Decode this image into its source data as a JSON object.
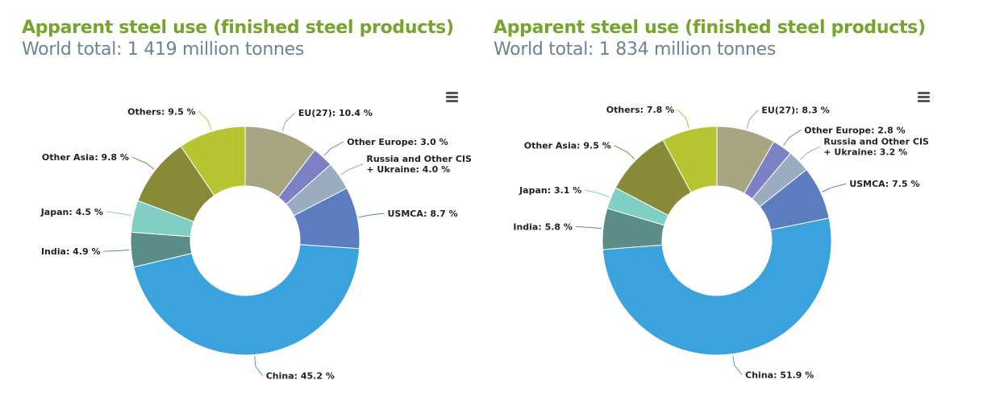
{
  "chart_data": [
    {
      "type": "pie",
      "title": "Apparent steel use (finished steel products)",
      "subtitle": "World total: 1 419 million tonnes",
      "slices": [
        {
          "name": "EU(27)",
          "value": 10.4,
          "label": "EU(27): 10.4 %",
          "color": "#a8a582"
        },
        {
          "name": "Other Europe",
          "value": 3.0,
          "label": "Other Europe: 3.0 %",
          "color": "#7b81c4"
        },
        {
          "name": "Russia and Other CIS + Ukraine",
          "value": 4.0,
          "label": [
            "Russia and Other CIS",
            "+ Ukraine: 4.0 %"
          ],
          "color": "#9aacc0"
        },
        {
          "name": "USMCA",
          "value": 8.7,
          "label": "USMCA: 8.7 %",
          "color": "#5b7dc0"
        },
        {
          "name": "China",
          "value": 45.2,
          "label": "China: 45.2 %",
          "color": "#3aa2dc"
        },
        {
          "name": "India",
          "value": 4.9,
          "label": "India: 4.9 %",
          "color": "#5a8d85"
        },
        {
          "name": "Japan",
          "value": 4.5,
          "label": "Japan: 4.5 %",
          "color": "#7fcfc4"
        },
        {
          "name": "Other Asia",
          "value": 9.8,
          "label": "Other Asia: 9.8 %",
          "color": "#878a36"
        },
        {
          "name": "Others",
          "value": 9.5,
          "label": "Others: 9.5 %",
          "color": "#b6c530"
        }
      ]
    },
    {
      "type": "pie",
      "title": "Apparent steel use (finished steel products)",
      "subtitle": "World total: 1 834 million tonnes",
      "slices": [
        {
          "name": "EU(27)",
          "value": 8.3,
          "label": "EU(27): 8.3 %",
          "color": "#a8a582"
        },
        {
          "name": "Other Europe",
          "value": 2.8,
          "label": "Other Europe: 2.8 %",
          "color": "#7b81c4"
        },
        {
          "name": "Russia and Other CIS + Ukraine",
          "value": 3.2,
          "label": [
            "Russia and Other CIS",
            "+ Ukraine: 3.2 %"
          ],
          "color": "#9aacc0"
        },
        {
          "name": "USMCA",
          "value": 7.5,
          "label": "USMCA: 7.5 %",
          "color": "#5b7dc0"
        },
        {
          "name": "China",
          "value": 51.9,
          "label": "China: 51.9 %",
          "color": "#3aa2dc"
        },
        {
          "name": "India",
          "value": 5.8,
          "label": "India: 5.8 %",
          "color": "#5a8d85"
        },
        {
          "name": "Japan",
          "value": 3.1,
          "label": "Japan: 3.1 %",
          "color": "#7fcfc4"
        },
        {
          "name": "Other Asia",
          "value": 9.5,
          "label": "Other Asia: 9.5 %",
          "color": "#878a36"
        },
        {
          "name": "Others",
          "value": 7.8,
          "label": "Others: 7.8 %",
          "color": "#b6c530"
        }
      ]
    }
  ],
  "menu_icon": "hamburger-menu-icon"
}
